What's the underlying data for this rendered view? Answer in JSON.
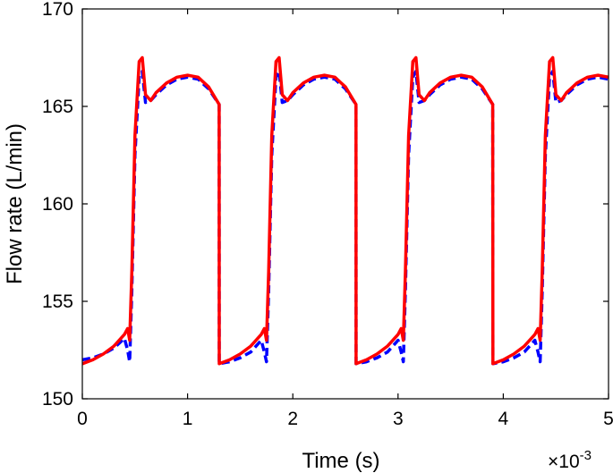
{
  "chart_data": {
    "type": "line",
    "title": "",
    "xlabel": "Time (s)",
    "ylabel": "Flow rate (L/min)",
    "x_multiplier_label": "×10",
    "x_multiplier_exponent": "-3",
    "xlim": [
      0,
      5
    ],
    "ylim": [
      150,
      170
    ],
    "xticks": [
      0,
      1,
      2,
      3,
      4,
      5
    ],
    "xtick_labels": [
      "0",
      "1",
      "2",
      "3",
      "4",
      "5"
    ],
    "yticks": [
      150,
      155,
      160,
      165,
      170
    ],
    "ytick_labels": [
      "150",
      "155",
      "160",
      "165",
      "170"
    ],
    "grid": false,
    "legend": "none",
    "period": 1.3,
    "series": [
      {
        "color": "#0000ff",
        "style": "dashed",
        "x": [
          0,
          0.1,
          0.2,
          0.3,
          0.4,
          0.43,
          0.45,
          0.47,
          0.5,
          0.54,
          0.57,
          0.6,
          0.65,
          0.7,
          0.8,
          0.9,
          1.0,
          1.1,
          1.2,
          1.3,
          1.301,
          1.4,
          1.5,
          1.6,
          1.7,
          1.73,
          1.75,
          1.77,
          1.8,
          1.84,
          1.87,
          1.9,
          1.95,
          2.0,
          2.1,
          2.2,
          2.3,
          2.4,
          2.5,
          2.6,
          2.601,
          2.7,
          2.8,
          2.9,
          3.0,
          3.03,
          3.05,
          3.07,
          3.1,
          3.14,
          3.17,
          3.2,
          3.25,
          3.3,
          3.4,
          3.5,
          3.6,
          3.7,
          3.8,
          3.9,
          3.901,
          4.0,
          4.1,
          4.2,
          4.3,
          4.33,
          4.35,
          4.37,
          4.4,
          4.44,
          4.47,
          4.5,
          4.55,
          4.6,
          4.7,
          4.8,
          4.9,
          5.0
        ],
        "y": [
          152.0,
          152.1,
          152.3,
          152.6,
          153.1,
          152.5,
          151.9,
          155.5,
          162.5,
          166.5,
          166.8,
          165.2,
          165.3,
          165.6,
          166.1,
          166.4,
          166.5,
          166.4,
          165.9,
          165.1,
          151.8,
          151.9,
          152.1,
          152.4,
          153.0,
          152.4,
          151.9,
          155.5,
          162.5,
          166.5,
          166.8,
          165.2,
          165.3,
          165.6,
          166.1,
          166.4,
          166.5,
          166.4,
          165.9,
          165.1,
          151.8,
          151.9,
          152.1,
          152.4,
          153.0,
          152.4,
          151.9,
          155.5,
          162.5,
          166.5,
          166.8,
          165.2,
          165.3,
          165.6,
          166.1,
          166.4,
          166.5,
          166.4,
          165.9,
          165.1,
          151.8,
          151.9,
          152.1,
          152.4,
          153.0,
          152.4,
          151.9,
          155.5,
          162.5,
          166.5,
          166.8,
          165.2,
          165.3,
          165.6,
          166.1,
          166.4,
          166.5,
          166.4
        ]
      },
      {
        "color": "#ff0000",
        "style": "solid",
        "x": [
          0,
          0.1,
          0.2,
          0.3,
          0.4,
          0.43,
          0.45,
          0.47,
          0.5,
          0.54,
          0.57,
          0.6,
          0.65,
          0.7,
          0.8,
          0.9,
          1.0,
          1.1,
          1.2,
          1.3,
          1.301,
          1.4,
          1.5,
          1.6,
          1.7,
          1.73,
          1.75,
          1.77,
          1.8,
          1.84,
          1.87,
          1.9,
          1.95,
          2.0,
          2.1,
          2.2,
          2.3,
          2.4,
          2.5,
          2.6,
          2.601,
          2.7,
          2.8,
          2.9,
          3.0,
          3.03,
          3.05,
          3.07,
          3.1,
          3.14,
          3.17,
          3.2,
          3.25,
          3.3,
          3.4,
          3.5,
          3.6,
          3.7,
          3.8,
          3.9,
          3.901,
          4.0,
          4.1,
          4.2,
          4.3,
          4.33,
          4.35,
          4.37,
          4.4,
          4.44,
          4.47,
          4.5,
          4.55,
          4.6,
          4.7,
          4.8,
          4.9,
          5.0
        ],
        "y": [
          151.8,
          152.0,
          152.3,
          152.7,
          153.3,
          153.6,
          153.0,
          156.5,
          163.5,
          167.3,
          167.5,
          165.6,
          165.3,
          165.7,
          166.2,
          166.5,
          166.6,
          166.5,
          166.0,
          165.1,
          151.8,
          152.0,
          152.3,
          152.7,
          153.3,
          153.6,
          153.0,
          156.5,
          163.5,
          167.3,
          167.5,
          165.6,
          165.3,
          165.7,
          166.2,
          166.5,
          166.6,
          166.5,
          166.0,
          165.1,
          151.8,
          152.0,
          152.3,
          152.7,
          153.3,
          153.6,
          153.0,
          156.5,
          163.5,
          167.3,
          167.5,
          165.6,
          165.3,
          165.7,
          166.2,
          166.5,
          166.6,
          166.5,
          166.0,
          165.1,
          151.8,
          152.0,
          152.3,
          152.7,
          153.3,
          153.6,
          153.0,
          156.5,
          163.5,
          167.3,
          167.5,
          165.6,
          165.3,
          165.7,
          166.2,
          166.5,
          166.6,
          166.5
        ]
      }
    ]
  }
}
